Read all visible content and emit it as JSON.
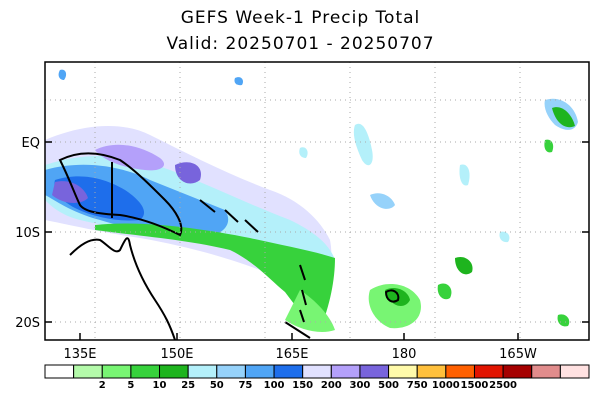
{
  "title": "GEFS Week-1 Precip Total",
  "subtitle": "Valid: 20250701 - 20250707",
  "axes": {
    "lon_ticks": [
      "135E",
      "150E",
      "165E",
      "180",
      "165W"
    ],
    "lat_ticks": [
      "EQ",
      "10S",
      "20S"
    ]
  },
  "colorbar": {
    "labels": [
      "2",
      "5",
      "10",
      "25",
      "50",
      "75",
      "100",
      "150",
      "200",
      "300",
      "500",
      "750",
      "1000",
      "1500",
      "2500"
    ],
    "colors": [
      "#ffffff",
      "#b4faaa",
      "#78f573",
      "#37d23c",
      "#1eb41e",
      "#b4f0fa",
      "#96d2fa",
      "#50a5f5",
      "#1e6eeb",
      "#e1e1ff",
      "#b4a0fa",
      "#7864dc",
      "#fffaaa",
      "#ffc03c",
      "#ff6000",
      "#e11400",
      "#a50000",
      "#e18c8c",
      "#ffe1e1"
    ]
  },
  "map": {
    "region": "Western Pacific",
    "grid": true,
    "coastline_color": "#000000"
  }
}
